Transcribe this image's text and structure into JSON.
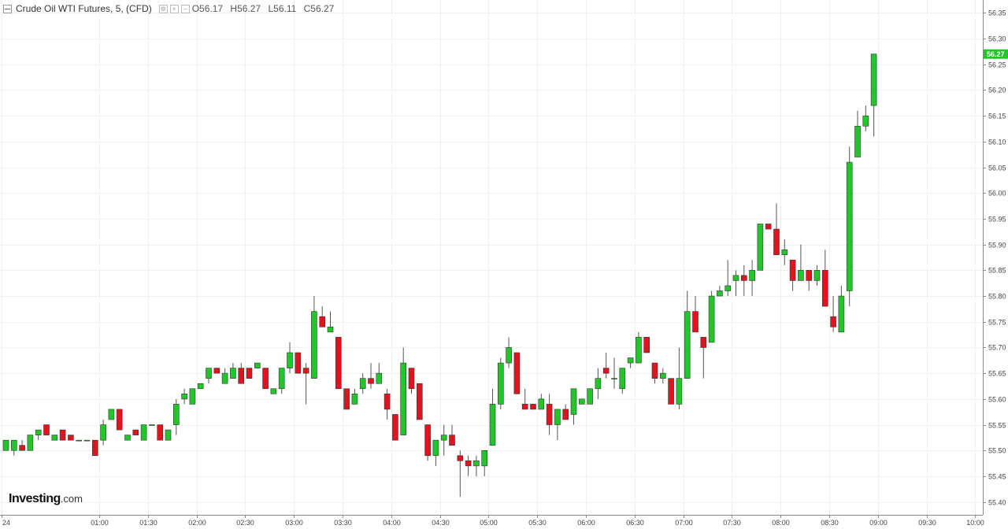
{
  "legend": {
    "title": "Crude Oil WTI Futures, 5, (CFD)",
    "open_label": "O",
    "open": "56.17",
    "high_label": "H",
    "high": "56.27",
    "low_label": "L",
    "low": "56.11",
    "close_label": "C",
    "close": "56.27"
  },
  "logo": {
    "brand": "Investing",
    "suffix": ".com"
  },
  "colors": {
    "up": "#22c52a",
    "down": "#e0141e",
    "grid": "#eef0f2",
    "axis": "#888888",
    "price_tag": "#22c52a"
  },
  "chart_data": {
    "type": "candlestick",
    "title": "",
    "xlabel": "",
    "ylabel": "",
    "ylim": [
      55.375,
      56.375
    ],
    "y_ticks": [
      "55.40",
      "55.45",
      "55.50",
      "55.55",
      "55.60",
      "55.65",
      "55.70",
      "55.75",
      "55.80",
      "55.85",
      "55.90",
      "55.95",
      "56.00",
      "56.05",
      "56.10",
      "56.15",
      "56.20",
      "56.25",
      "56.30",
      "56.35"
    ],
    "x_ticks": [
      "24",
      "01:00",
      "01:30",
      "02:00",
      "02:30",
      "03:00",
      "03:30",
      "04:00",
      "04:30",
      "05:00",
      "05:30",
      "06:00",
      "06:30",
      "07:00",
      "07:30",
      "08:00",
      "08:30",
      "09:00",
      "09:30",
      "10:00"
    ],
    "x_tick_positions": [
      -0.5,
      11.5,
      17.5,
      23.5,
      29.5,
      35.5,
      41.5,
      47.5,
      53.5,
      59.5,
      65.5,
      71.5,
      77.5,
      83.5,
      89.5,
      95.5,
      101.5,
      107.5,
      113.5,
      119.5
    ],
    "current_price": "56.27",
    "grid": true,
    "candles": [
      {
        "o": 55.5,
        "h": 55.52,
        "l": 55.5,
        "c": 55.52
      },
      {
        "o": 55.5,
        "h": 55.52,
        "l": 55.49,
        "c": 55.52
      },
      {
        "o": 55.51,
        "h": 55.52,
        "l": 55.5,
        "c": 55.5
      },
      {
        "o": 55.5,
        "h": 55.53,
        "l": 55.5,
        "c": 55.53
      },
      {
        "o": 55.53,
        "h": 55.54,
        "l": 55.52,
        "c": 55.54
      },
      {
        "o": 55.55,
        "h": 55.55,
        "l": 55.53,
        "c": 55.53
      },
      {
        "o": 55.52,
        "h": 55.53,
        "l": 55.52,
        "c": 55.53
      },
      {
        "o": 55.54,
        "h": 55.54,
        "l": 55.52,
        "c": 55.52
      },
      {
        "o": 55.53,
        "h": 55.53,
        "l": 55.52,
        "c": 55.52
      },
      {
        "o": 55.52,
        "h": 55.52,
        "l": 55.52,
        "c": 55.52
      },
      {
        "o": 55.52,
        "h": 55.52,
        "l": 55.52,
        "c": 55.52
      },
      {
        "o": 55.52,
        "h": 55.52,
        "l": 55.49,
        "c": 55.49
      },
      {
        "o": 55.52,
        "h": 55.56,
        "l": 55.51,
        "c": 55.55
      },
      {
        "o": 55.56,
        "h": 55.58,
        "l": 55.56,
        "c": 55.58
      },
      {
        "o": 55.58,
        "h": 55.58,
        "l": 55.54,
        "c": 55.54
      },
      {
        "o": 55.52,
        "h": 55.53,
        "l": 55.52,
        "c": 55.53
      },
      {
        "o": 55.54,
        "h": 55.54,
        "l": 55.53,
        "c": 55.53
      },
      {
        "o": 55.52,
        "h": 55.55,
        "l": 55.52,
        "c": 55.55
      },
      {
        "o": 55.55,
        "h": 55.55,
        "l": 55.55,
        "c": 55.55
      },
      {
        "o": 55.55,
        "h": 55.55,
        "l": 55.52,
        "c": 55.52
      },
      {
        "o": 55.52,
        "h": 55.54,
        "l": 55.52,
        "c": 55.54
      },
      {
        "o": 55.55,
        "h": 55.6,
        "l": 55.53,
        "c": 55.59
      },
      {
        "o": 55.6,
        "h": 55.62,
        "l": 55.59,
        "c": 55.61
      },
      {
        "o": 55.59,
        "h": 55.62,
        "l": 55.59,
        "c": 55.62
      },
      {
        "o": 55.62,
        "h": 55.63,
        "l": 55.62,
        "c": 55.63
      },
      {
        "o": 55.64,
        "h": 55.66,
        "l": 55.63,
        "c": 55.66
      },
      {
        "o": 55.66,
        "h": 55.66,
        "l": 55.65,
        "c": 55.65
      },
      {
        "o": 55.63,
        "h": 55.66,
        "l": 55.63,
        "c": 55.65
      },
      {
        "o": 55.64,
        "h": 55.67,
        "l": 55.64,
        "c": 55.66
      },
      {
        "o": 55.66,
        "h": 55.67,
        "l": 55.63,
        "c": 55.63
      },
      {
        "o": 55.66,
        "h": 55.66,
        "l": 55.64,
        "c": 55.64
      },
      {
        "o": 55.66,
        "h": 55.67,
        "l": 55.66,
        "c": 55.67
      },
      {
        "o": 55.66,
        "h": 55.66,
        "l": 55.62,
        "c": 55.62
      },
      {
        "o": 55.61,
        "h": 55.62,
        "l": 55.61,
        "c": 55.62
      },
      {
        "o": 55.62,
        "h": 55.66,
        "l": 55.61,
        "c": 55.66
      },
      {
        "o": 55.66,
        "h": 55.71,
        "l": 55.65,
        "c": 55.69
      },
      {
        "o": 55.69,
        "h": 55.69,
        "l": 55.65,
        "c": 55.65
      },
      {
        "o": 55.66,
        "h": 55.67,
        "l": 55.59,
        "c": 55.65
      },
      {
        "o": 55.64,
        "h": 55.8,
        "l": 55.64,
        "c": 55.77
      },
      {
        "o": 55.76,
        "h": 55.78,
        "l": 55.74,
        "c": 55.74
      },
      {
        "o": 55.73,
        "h": 55.77,
        "l": 55.73,
        "c": 55.74
      },
      {
        "o": 55.72,
        "h": 55.72,
        "l": 55.62,
        "c": 55.62
      },
      {
        "o": 55.62,
        "h": 55.62,
        "l": 55.58,
        "c": 55.58
      },
      {
        "o": 55.59,
        "h": 55.62,
        "l": 55.59,
        "c": 55.61
      },
      {
        "o": 55.62,
        "h": 55.65,
        "l": 55.61,
        "c": 55.64
      },
      {
        "o": 55.64,
        "h": 55.67,
        "l": 55.62,
        "c": 55.63
      },
      {
        "o": 55.63,
        "h": 55.67,
        "l": 55.63,
        "c": 55.65
      },
      {
        "o": 55.61,
        "h": 55.62,
        "l": 55.56,
        "c": 55.58
      },
      {
        "o": 55.57,
        "h": 55.57,
        "l": 55.52,
        "c": 55.52
      },
      {
        "o": 55.53,
        "h": 55.7,
        "l": 55.53,
        "c": 55.67
      },
      {
        "o": 55.66,
        "h": 55.66,
        "l": 55.61,
        "c": 55.62
      },
      {
        "o": 55.63,
        "h": 55.63,
        "l": 55.56,
        "c": 55.56
      },
      {
        "o": 55.55,
        "h": 55.55,
        "l": 55.48,
        "c": 55.49
      },
      {
        "o": 55.49,
        "h": 55.52,
        "l": 55.47,
        "c": 55.52
      },
      {
        "o": 55.52,
        "h": 55.55,
        "l": 55.49,
        "c": 55.53
      },
      {
        "o": 55.53,
        "h": 55.55,
        "l": 55.51,
        "c": 55.51
      },
      {
        "o": 55.49,
        "h": 55.5,
        "l": 55.41,
        "c": 55.48
      },
      {
        "o": 55.48,
        "h": 55.49,
        "l": 55.45,
        "c": 55.47
      },
      {
        "o": 55.47,
        "h": 55.49,
        "l": 55.45,
        "c": 55.48
      },
      {
        "o": 55.47,
        "h": 55.5,
        "l": 55.45,
        "c": 55.5
      },
      {
        "o": 55.51,
        "h": 55.62,
        "l": 55.51,
        "c": 55.59
      },
      {
        "o": 55.59,
        "h": 55.68,
        "l": 55.58,
        "c": 55.67
      },
      {
        "o": 55.67,
        "h": 55.72,
        "l": 55.66,
        "c": 55.7
      },
      {
        "o": 55.69,
        "h": 55.69,
        "l": 55.61,
        "c": 55.61
      },
      {
        "o": 55.59,
        "h": 55.62,
        "l": 55.58,
        "c": 55.58
      },
      {
        "o": 55.59,
        "h": 55.59,
        "l": 55.58,
        "c": 55.58
      },
      {
        "o": 55.58,
        "h": 55.61,
        "l": 55.58,
        "c": 55.6
      },
      {
        "o": 55.59,
        "h": 55.61,
        "l": 55.53,
        "c": 55.55
      },
      {
        "o": 55.55,
        "h": 55.58,
        "l": 55.52,
        "c": 55.58
      },
      {
        "o": 55.58,
        "h": 55.59,
        "l": 55.56,
        "c": 55.56
      },
      {
        "o": 55.57,
        "h": 55.62,
        "l": 55.55,
        "c": 55.62
      },
      {
        "o": 55.59,
        "h": 55.6,
        "l": 55.59,
        "c": 55.6
      },
      {
        "o": 55.59,
        "h": 55.62,
        "l": 55.59,
        "c": 55.62
      },
      {
        "o": 55.62,
        "h": 55.66,
        "l": 55.6,
        "c": 55.64
      },
      {
        "o": 55.66,
        "h": 55.69,
        "l": 55.64,
        "c": 55.65
      },
      {
        "o": 55.64,
        "h": 55.68,
        "l": 55.62,
        "c": 55.64
      },
      {
        "o": 55.62,
        "h": 55.66,
        "l": 55.61,
        "c": 55.66
      },
      {
        "o": 55.67,
        "h": 55.68,
        "l": 55.66,
        "c": 55.68
      },
      {
        "o": 55.67,
        "h": 55.73,
        "l": 55.67,
        "c": 55.72
      },
      {
        "o": 55.72,
        "h": 55.72,
        "l": 55.69,
        "c": 55.69
      },
      {
        "o": 55.67,
        "h": 55.67,
        "l": 55.63,
        "c": 55.64
      },
      {
        "o": 55.64,
        "h": 55.66,
        "l": 55.63,
        "c": 55.65
      },
      {
        "o": 55.64,
        "h": 55.64,
        "l": 55.59,
        "c": 55.59
      },
      {
        "o": 55.59,
        "h": 55.7,
        "l": 55.58,
        "c": 55.64
      },
      {
        "o": 55.64,
        "h": 55.81,
        "l": 55.64,
        "c": 55.77
      },
      {
        "o": 55.77,
        "h": 55.8,
        "l": 55.73,
        "c": 55.73
      },
      {
        "o": 55.72,
        "h": 55.72,
        "l": 55.64,
        "c": 55.7
      },
      {
        "o": 55.71,
        "h": 55.81,
        "l": 55.71,
        "c": 55.8
      },
      {
        "o": 55.8,
        "h": 55.82,
        "l": 55.8,
        "c": 55.81
      },
      {
        "o": 55.81,
        "h": 55.87,
        "l": 55.8,
        "c": 55.82
      },
      {
        "o": 55.83,
        "h": 55.85,
        "l": 55.8,
        "c": 55.84
      },
      {
        "o": 55.84,
        "h": 55.86,
        "l": 55.8,
        "c": 55.83
      },
      {
        "o": 55.83,
        "h": 55.87,
        "l": 55.8,
        "c": 55.85
      },
      {
        "o": 55.85,
        "h": 55.94,
        "l": 55.85,
        "c": 55.94
      },
      {
        "o": 55.94,
        "h": 55.94,
        "l": 55.93,
        "c": 55.93
      },
      {
        "o": 55.93,
        "h": 55.98,
        "l": 55.88,
        "c": 55.88
      },
      {
        "o": 55.88,
        "h": 55.91,
        "l": 55.86,
        "c": 55.89
      },
      {
        "o": 55.87,
        "h": 55.87,
        "l": 55.81,
        "c": 55.83
      },
      {
        "o": 55.83,
        "h": 55.9,
        "l": 55.83,
        "c": 55.85
      },
      {
        "o": 55.85,
        "h": 55.85,
        "l": 55.81,
        "c": 55.83
      },
      {
        "o": 55.83,
        "h": 55.86,
        "l": 55.82,
        "c": 55.85
      },
      {
        "o": 55.85,
        "h": 55.89,
        "l": 55.78,
        "c": 55.78
      },
      {
        "o": 55.76,
        "h": 55.8,
        "l": 55.73,
        "c": 55.74
      },
      {
        "o": 55.73,
        "h": 55.82,
        "l": 55.73,
        "c": 55.8
      },
      {
        "o": 55.81,
        "h": 56.09,
        "l": 55.78,
        "c": 56.06
      },
      {
        "o": 56.07,
        "h": 56.16,
        "l": 56.07,
        "c": 56.13
      },
      {
        "o": 56.13,
        "h": 56.17,
        "l": 56.12,
        "c": 56.15
      },
      {
        "o": 56.17,
        "h": 56.27,
        "l": 56.11,
        "c": 56.27
      }
    ]
  }
}
